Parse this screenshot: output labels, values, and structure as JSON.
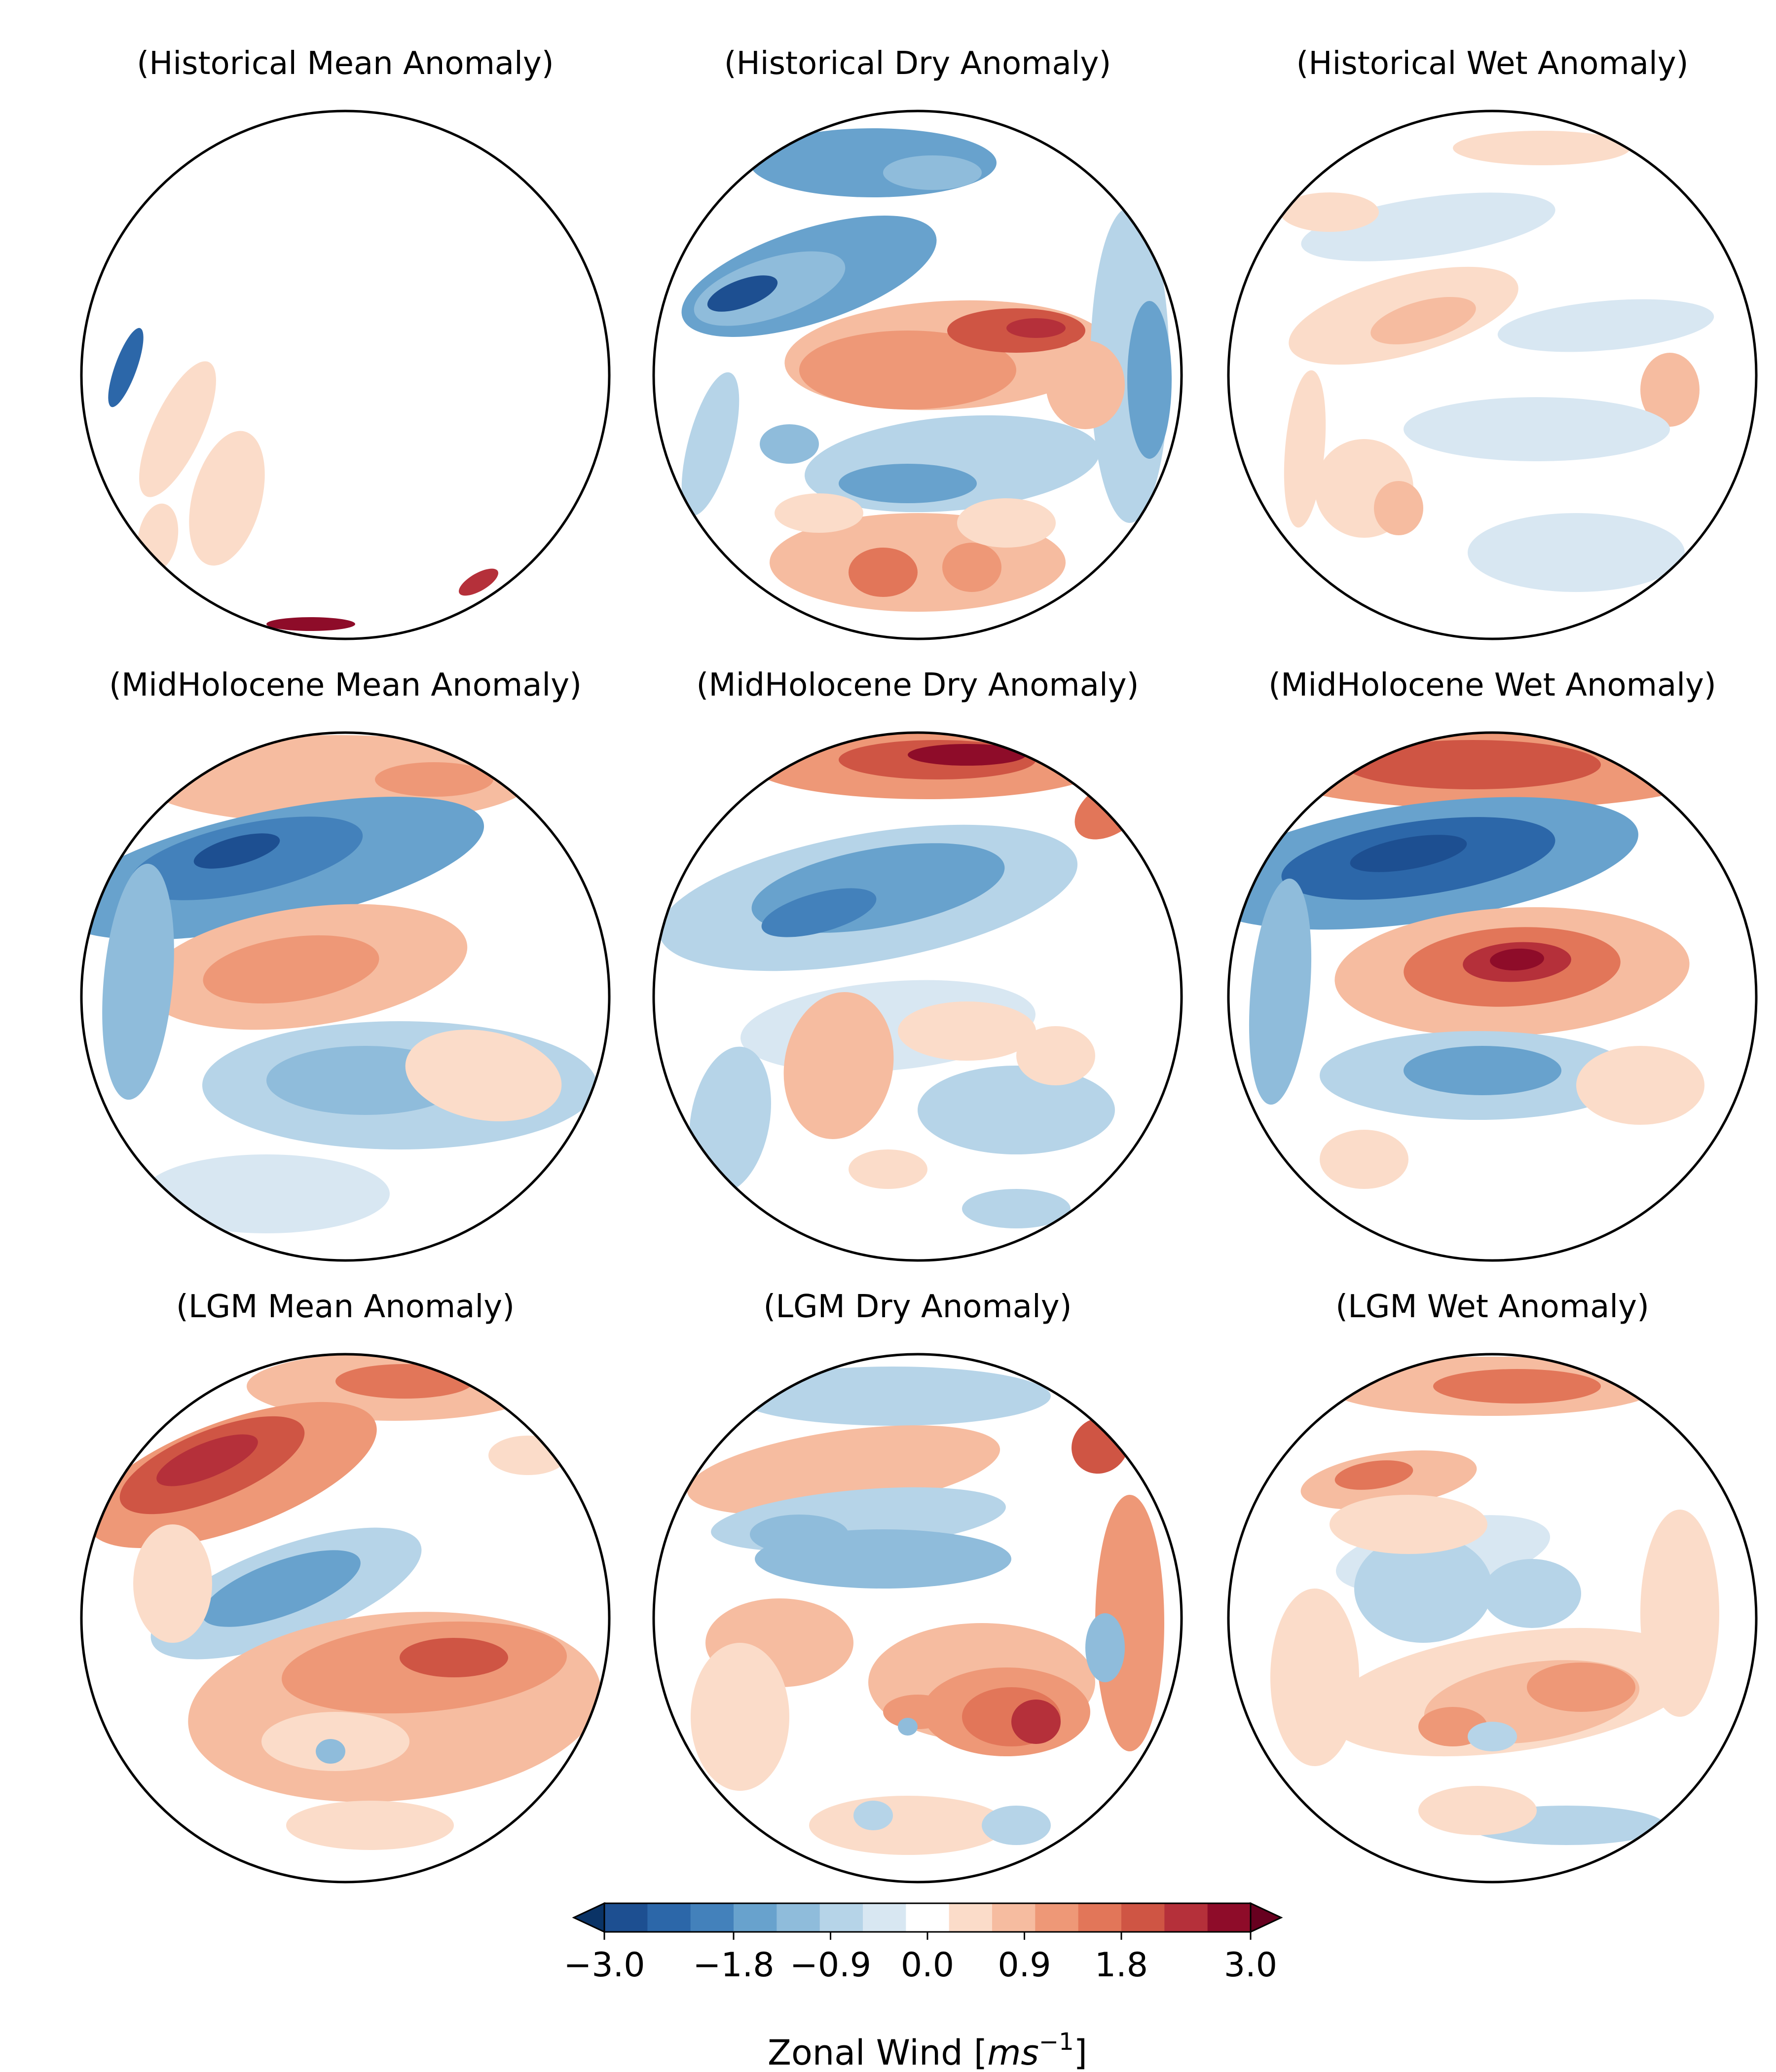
{
  "figure": {
    "panels": [
      {
        "title": "(Historical Mean Anomaly)",
        "period": "Historical",
        "composite": "Mean"
      },
      {
        "title": "(Historical Dry Anomaly)",
        "period": "Historical",
        "composite": "Dry"
      },
      {
        "title": "(Historical Wet Anomaly)",
        "period": "Historical",
        "composite": "Wet"
      },
      {
        "title": "(MidHolocene Mean Anomaly)",
        "period": "MidHolocene",
        "composite": "Mean"
      },
      {
        "title": "(MidHolocene Dry Anomaly)",
        "period": "MidHolocene",
        "composite": "Dry"
      },
      {
        "title": "(MidHolocene Wet Anomaly)",
        "period": "MidHolocene",
        "composite": "Wet"
      },
      {
        "title": "(LGM Mean Anomaly)",
        "period": "LGM",
        "composite": "Mean"
      },
      {
        "title": "(LGM Dry Anomaly)",
        "period": "LGM",
        "composite": "Dry"
      },
      {
        "title": "(LGM Wet Anomaly)",
        "period": "LGM",
        "composite": "Wet"
      }
    ],
    "colorbar": {
      "label_text": "Zonal Wind [",
      "label_unit_base": "ms",
      "label_unit_exp": "−1",
      "label_close": "]",
      "min": -3.0,
      "max": 3.0,
      "ticks": [
        {
          "value": -3.0,
          "label": "−3.0"
        },
        {
          "value": -1.8,
          "label": "−1.8"
        },
        {
          "value": -0.9,
          "label": "−0.9"
        },
        {
          "value": 0.0,
          "label": "0.0"
        },
        {
          "value": 0.9,
          "label": "0.9"
        },
        {
          "value": 1.8,
          "label": "1.8"
        },
        {
          "value": 3.0,
          "label": "3.0"
        }
      ],
      "colors": [
        "#1d4f91",
        "#2c67a9",
        "#4381bb",
        "#68a2cd",
        "#8fbcdb",
        "#b6d4e8",
        "#d8e7f2",
        "#ffffff",
        "#fbdcc9",
        "#f6bca0",
        "#ee9877",
        "#e27659",
        "#cf5544",
        "#b5303a",
        "#8e0c29"
      ],
      "extend": "both"
    }
  }
}
